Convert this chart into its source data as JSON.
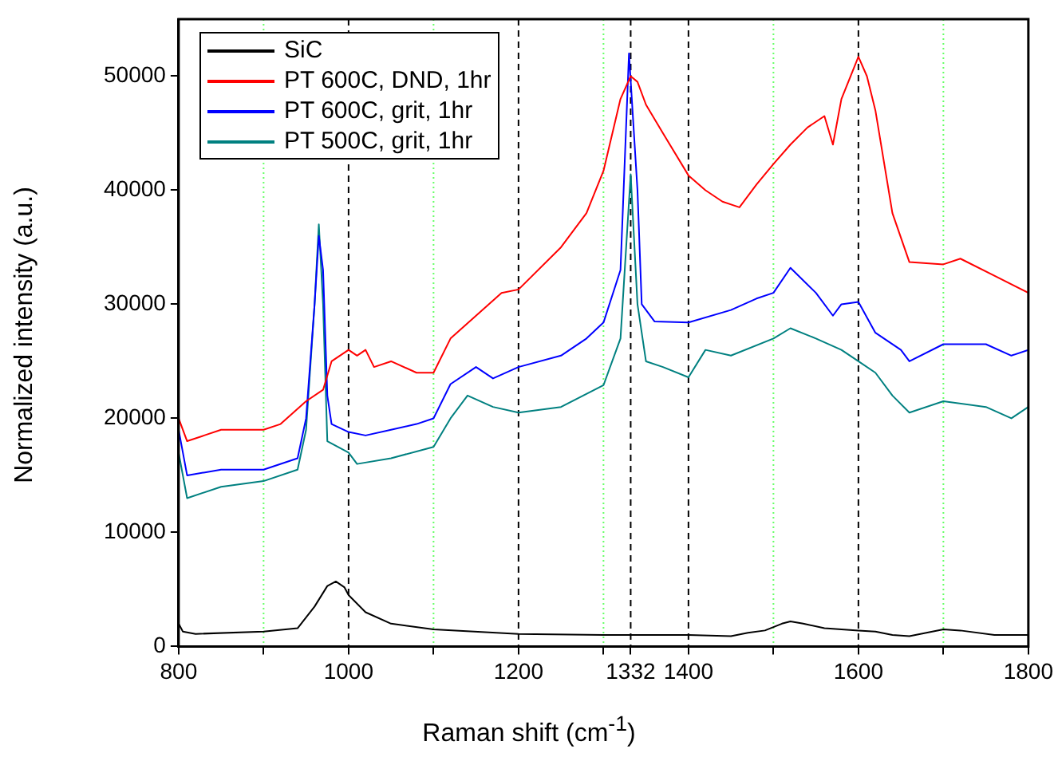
{
  "chart_data": {
    "type": "line",
    "xlabel": "Raman shift (cm$^{-1}$)",
    "ylabel": "Normalized intensity (a.u.)",
    "xlim": [
      800,
      1800
    ],
    "xticks": [
      800,
      {
        "value": 900,
        "label": null
      },
      1000,
      {
        "value": 1100,
        "label": null
      },
      1200,
      {
        "value": 1300,
        "label": null
      },
      1332,
      1400,
      {
        "value": 1500,
        "label": null
      },
      1600,
      {
        "value": 1700,
        "label": null
      },
      1800
    ],
    "ylim": [
      0,
      55000
    ],
    "yticks": [
      0,
      10000,
      20000,
      30000,
      40000,
      50000
    ],
    "legend": "top left",
    "grid": false,
    "marker": "none",
    "line_style": "solid",
    "ref_lines": [
      {
        "axis": "x",
        "value": 1000,
        "color": "#000000",
        "line_style": "dashed"
      },
      {
        "axis": "x",
        "value": 1200,
        "color": "#000000",
        "line_style": "dashed"
      },
      {
        "axis": "x",
        "value": 1332,
        "color": "#000000",
        "line_style": "dashed"
      },
      {
        "axis": "x",
        "value": 1400,
        "color": "#000000",
        "line_style": "dashed"
      },
      {
        "axis": "x",
        "value": 1600,
        "color": "#000000",
        "line_style": "dashed"
      },
      {
        "axis": "x",
        "value": 900,
        "color": "#66ff66",
        "line_style": "dotted"
      },
      {
        "axis": "x",
        "value": 1100,
        "color": "#66ff66",
        "line_style": "dotted"
      },
      {
        "axis": "x",
        "value": 1300,
        "color": "#66ff66",
        "line_style": "dotted"
      },
      {
        "axis": "x",
        "value": 1500,
        "color": "#66ff66",
        "line_style": "dotted"
      },
      {
        "axis": "x",
        "value": 1700,
        "color": "#66ff66",
        "line_style": "dotted"
      }
    ],
    "series": [
      {
        "name": "SiC",
        "color": "#000000",
        "x": [
          800,
          805,
          820,
          900,
          940,
          960,
          975,
          985,
          995,
          1000,
          1020,
          1050,
          1100,
          1200,
          1300,
          1400,
          1450,
          1470,
          1490,
          1510,
          1520,
          1535,
          1560,
          1600,
          1620,
          1640,
          1660,
          1680,
          1700,
          1720,
          1760,
          1800
        ],
        "values": [
          2000,
          1300,
          1100,
          1300,
          1600,
          3500,
          5300,
          5700,
          5200,
          4500,
          3000,
          2000,
          1500,
          1100,
          1000,
          1000,
          900,
          1200,
          1400,
          2000,
          2200,
          2000,
          1600,
          1400,
          1300,
          1000,
          900,
          1200,
          1500,
          1400,
          1000,
          1000
        ]
      },
      {
        "name": "PT 600C, DND, 1hr",
        "color": "#ff0000",
        "x": [
          800,
          810,
          830,
          850,
          900,
          920,
          950,
          970,
          980,
          1000,
          1010,
          1020,
          1030,
          1050,
          1080,
          1100,
          1120,
          1150,
          1180,
          1200,
          1250,
          1280,
          1300,
          1320,
          1332,
          1340,
          1350,
          1370,
          1400,
          1420,
          1440,
          1460,
          1480,
          1500,
          1520,
          1540,
          1560,
          1570,
          1580,
          1600,
          1610,
          1620,
          1640,
          1660,
          1700,
          1720,
          1760,
          1800
        ],
        "values": [
          20000,
          18000,
          18500,
          19000,
          19000,
          19500,
          21500,
          22500,
          25000,
          26000,
          25500,
          26000,
          24500,
          25000,
          24000,
          24000,
          27000,
          29000,
          31000,
          31300,
          35000,
          38000,
          41700,
          48000,
          50000,
          49500,
          47500,
          45000,
          41300,
          40000,
          39000,
          38500,
          40500,
          42300,
          44000,
          45500,
          46500,
          44000,
          48000,
          51700,
          50000,
          47000,
          38000,
          33700,
          33500,
          34000,
          32500,
          31000
        ]
      },
      {
        "name": "PT 600C, grit, 1hr",
        "color": "#0000ff",
        "x": [
          800,
          810,
          850,
          900,
          940,
          950,
          960,
          965,
          970,
          975,
          980,
          1000,
          1020,
          1050,
          1080,
          1100,
          1120,
          1150,
          1170,
          1200,
          1250,
          1280,
          1300,
          1320,
          1330,
          1340,
          1345,
          1360,
          1400,
          1450,
          1480,
          1500,
          1520,
          1550,
          1570,
          1580,
          1600,
          1620,
          1650,
          1660,
          1700,
          1750,
          1780,
          1800
        ],
        "values": [
          19000,
          15000,
          15500,
          15500,
          16500,
          20000,
          30000,
          36000,
          33000,
          22000,
          19500,
          18800,
          18500,
          19000,
          19500,
          20000,
          23000,
          24500,
          23500,
          24500,
          25500,
          27000,
          28400,
          33000,
          52000,
          40000,
          30000,
          28500,
          28400,
          29500,
          30500,
          31000,
          33200,
          31000,
          29000,
          30000,
          30200,
          27500,
          26000,
          25000,
          26500,
          26500,
          25500,
          26000
        ]
      },
      {
        "name": "PT 500C, grit, 1hr",
        "color": "#008080",
        "x": [
          800,
          810,
          850,
          900,
          940,
          950,
          960,
          965,
          970,
          975,
          1000,
          1010,
          1050,
          1100,
          1120,
          1140,
          1170,
          1200,
          1250,
          1300,
          1320,
          1332,
          1340,
          1350,
          1370,
          1400,
          1420,
          1450,
          1500,
          1520,
          1550,
          1580,
          1600,
          1620,
          1640,
          1660,
          1700,
          1750,
          1780,
          1800
        ],
        "values": [
          17000,
          13000,
          14000,
          14500,
          15500,
          19000,
          30000,
          37000,
          30000,
          18000,
          17000,
          16000,
          16500,
          17500,
          20000,
          22000,
          21000,
          20500,
          21000,
          22900,
          27000,
          41400,
          30000,
          25000,
          24500,
          23600,
          26000,
          25500,
          27000,
          27900,
          27000,
          26000,
          25000,
          24000,
          22000,
          20500,
          21500,
          21000,
          20000,
          21000
        ]
      }
    ]
  }
}
